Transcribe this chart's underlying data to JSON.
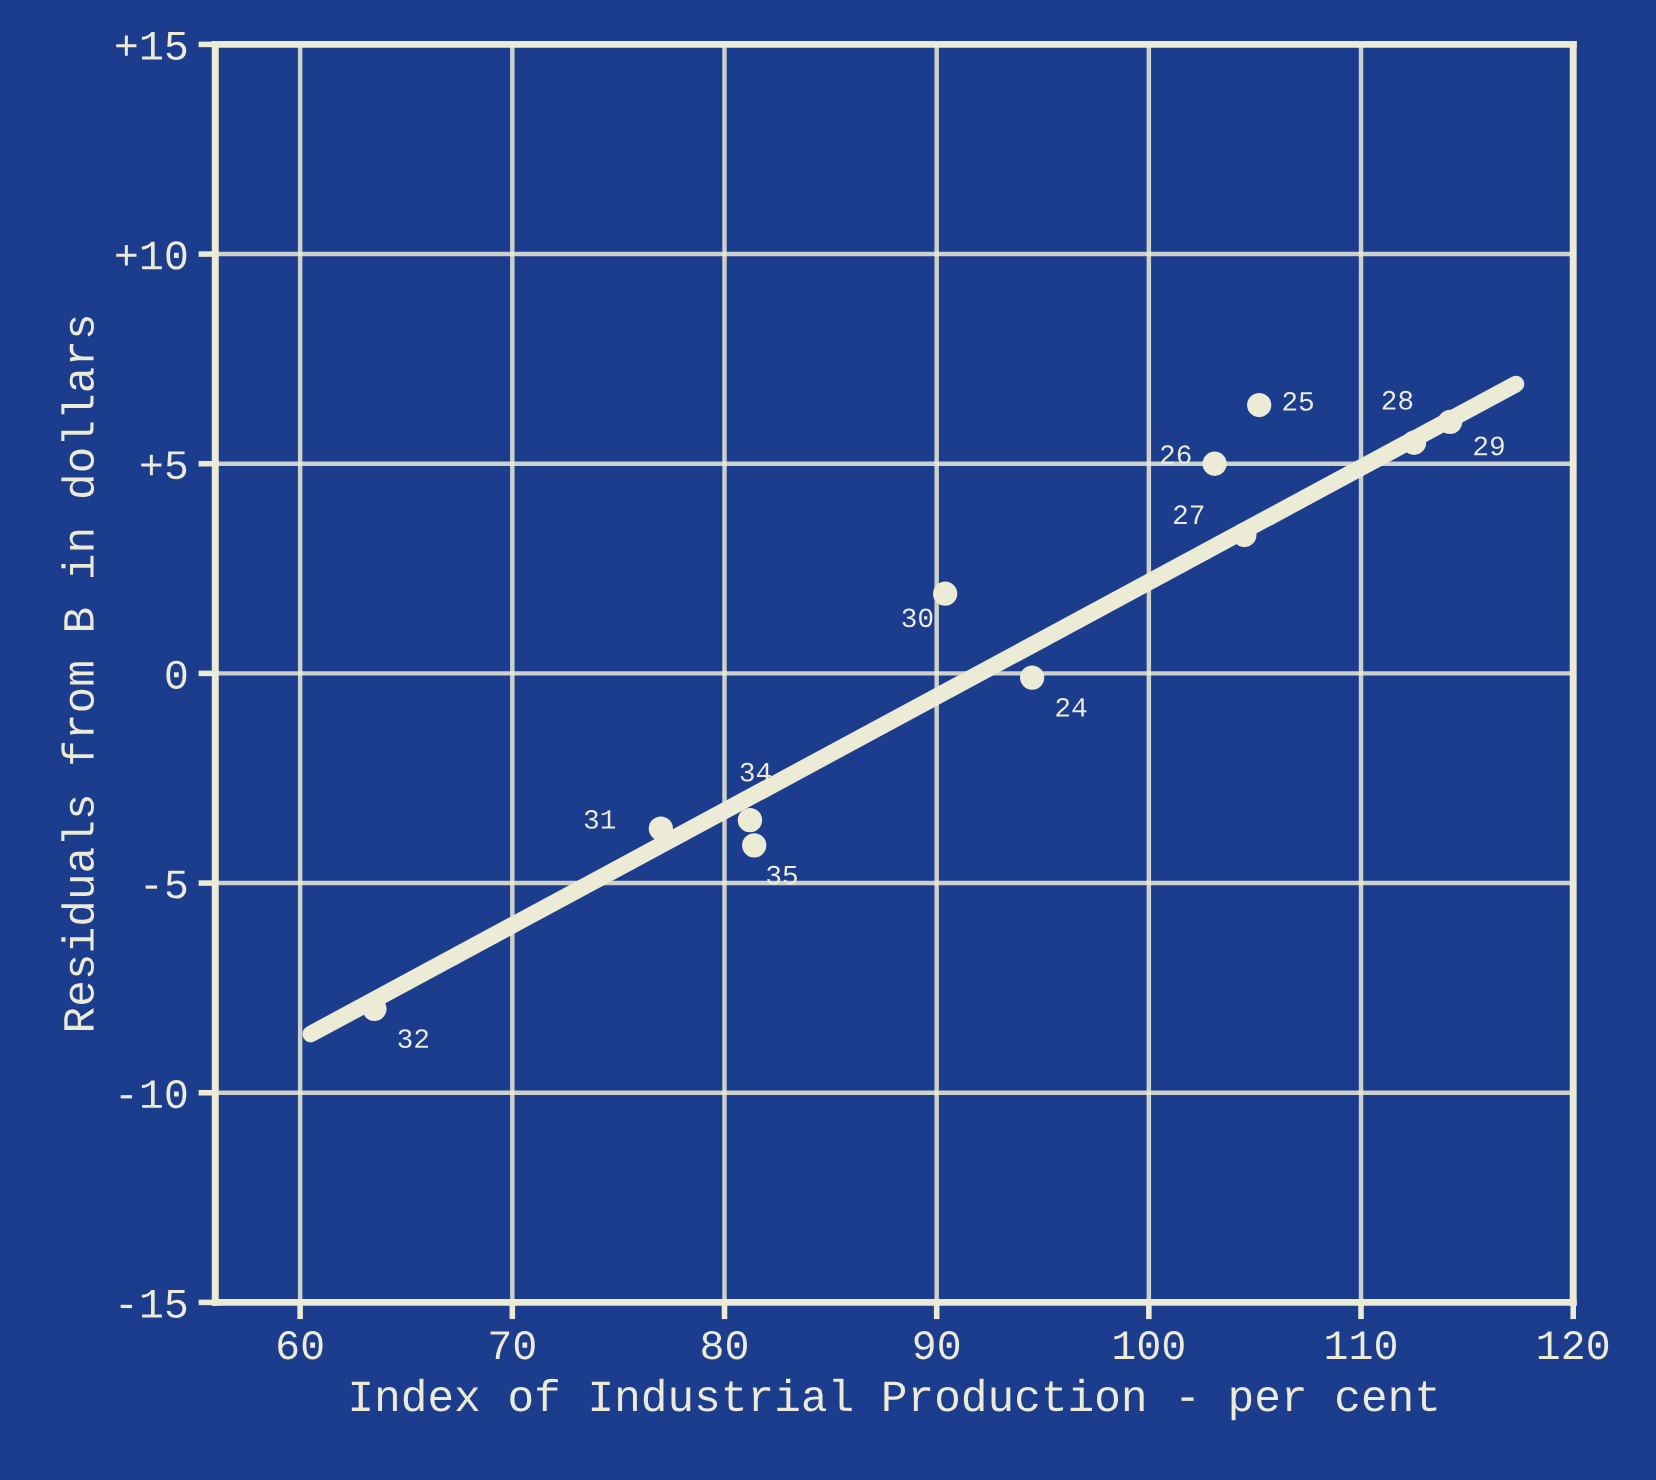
{
  "chart_data": {
    "type": "scatter",
    "xlabel": "Index of Industrial Production - per cent",
    "ylabel": "Residuals from B in dollars",
    "x": [
      63.5,
      77.0,
      81.2,
      81.4,
      90.4,
      94.5,
      103.1,
      105.2,
      104.5,
      112.5,
      114.2
    ],
    "series": [
      {
        "color": "#ecebd6",
        "marker": "circle",
        "values": [
          -8.0,
          -3.7,
          -3.5,
          -4.1,
          1.9,
          -0.1,
          5.0,
          6.4,
          3.3,
          5.5,
          6.0
        ]
      },
      {
        "type": "line",
        "color": "#ecebd6",
        "x": [
          60.5,
          117.3
        ],
        "values": [
          -8.6,
          6.9
        ]
      }
    ],
    "annotations": [
      {
        "text": "32",
        "x": 63.5,
        "y": -8.0
      },
      {
        "text": "31",
        "x": 77.0,
        "y": -3.7
      },
      {
        "text": "34",
        "x": 81.2,
        "y": -3.5
      },
      {
        "text": "35",
        "x": 81.4,
        "y": -4.1
      },
      {
        "text": "30",
        "x": 90.4,
        "y": 1.9
      },
      {
        "text": "24",
        "x": 94.5,
        "y": -0.1
      },
      {
        "text": "26",
        "x": 103.1,
        "y": 5.0
      },
      {
        "text": "25",
        "x": 105.2,
        "y": 6.4
      },
      {
        "text": "27",
        "x": 104.5,
        "y": 3.3
      },
      {
        "text": "28",
        "x": 112.5,
        "y": 5.5
      },
      {
        "text": "29",
        "x": 114.2,
        "y": 6.0
      }
    ],
    "xlim": [
      56,
      120
    ],
    "ylim": [
      -15,
      15
    ],
    "xticks": [
      60,
      70,
      80,
      90,
      100,
      110,
      120
    ],
    "yticks": [
      -15,
      -10,
      -5,
      0,
      {
        "value": 5,
        "label": "+5"
      },
      {
        "value": 10,
        "label": "+10"
      },
      {
        "value": 15,
        "label": "+15"
      }
    ],
    "grid": true,
    "legend": false
  }
}
